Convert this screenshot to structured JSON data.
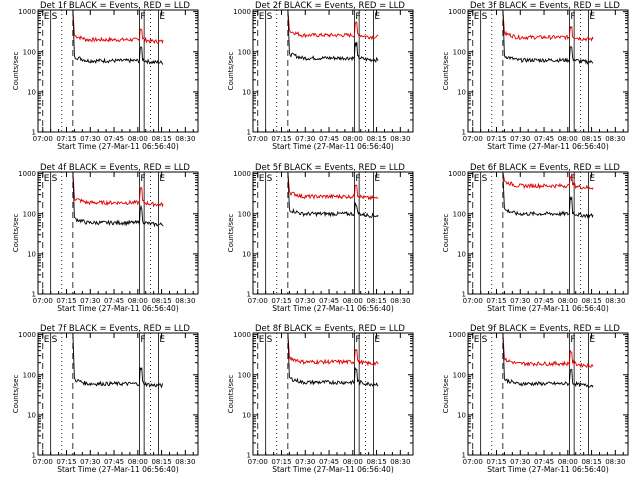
{
  "chart_data": {
    "type": "line",
    "panels": [
      {
        "title": "Det 1f BLACK = Events, RED = LLD",
        "black_level": 60,
        "red_level": 200,
        "black_spike": 120,
        "red_spike": 380
      },
      {
        "title": "Det 2f BLACK = Events, RED = LLD",
        "black_level": 70,
        "red_level": 260,
        "black_spike": 160,
        "red_spike": 500
      },
      {
        "title": "Det 3f BLACK = Events, RED = LLD",
        "black_level": 62,
        "red_level": 230,
        "black_spike": 130,
        "red_spike": 430
      },
      {
        "title": "Det 4f BLACK = Events, RED = LLD",
        "black_level": 60,
        "red_level": 190,
        "black_spike": 140,
        "red_spike": 420
      },
      {
        "title": "Det 5f BLACK = Events, RED = LLD",
        "black_level": 100,
        "red_level": 270,
        "black_spike": 170,
        "red_spike": 560
      },
      {
        "title": "Det 6f BLACK = Events, RED = LLD",
        "black_level": 100,
        "red_level": 500,
        "black_spike": 250,
        "red_spike": 900
      },
      {
        "title": "Det 7f BLACK = Events, RED = LLD",
        "black_level": 60,
        "red_level": 0,
        "black_spike": 140,
        "red_spike": 0
      },
      {
        "title": "Det 8f BLACK = Events, RED = LLD",
        "black_level": 65,
        "red_level": 210,
        "black_spike": 140,
        "red_spike": 450
      },
      {
        "title": "Det 9f BLACK = Events, RED = LLD",
        "black_level": 60,
        "red_level": 190,
        "black_spike": 130,
        "red_spike": 380
      }
    ],
    "x_tick_labels": [
      "07:00",
      "07:15",
      "07:30",
      "07:45",
      "08:00",
      "08:15",
      "08:30"
    ],
    "x_ticks_minutes": [
      0,
      15,
      30,
      45,
      60,
      75,
      90
    ],
    "xlim_minutes": [
      -3,
      98
    ],
    "y_tick_labels": [
      "1",
      "10",
      "100",
      "1000"
    ],
    "ylim": [
      1,
      1100
    ],
    "y_log": true,
    "xlabel": "Start Time (27-Mar-11 06:56:40)",
    "ylabel": "Counts/sec",
    "markers": [
      {
        "label": "E",
        "minute": 0,
        "style": "dashed"
      },
      {
        "label": "S",
        "minute": 5,
        "style": "solid"
      },
      {
        "label": "",
        "minute": 12,
        "style": "dotted"
      },
      {
        "label": "",
        "minute": 19,
        "style": "dashed"
      },
      {
        "label": "F",
        "minute": 61,
        "style": "solid"
      },
      {
        "label": "",
        "minute": 64,
        "style": "solid"
      },
      {
        "label": "",
        "minute": 68,
        "style": "dotted"
      },
      {
        "label": "E",
        "minute": 73,
        "style": "solid"
      }
    ],
    "data_start_minute": 20,
    "data_end_minute": 76,
    "spike_minute": 62,
    "colors": {
      "events": "#000000",
      "lld": "#e00000",
      "axes": "#000000"
    },
    "series": [
      {
        "name": "BLACK = Events",
        "color": "#000000"
      },
      {
        "name": "RED = LLD",
        "color": "#e00000"
      }
    ]
  }
}
